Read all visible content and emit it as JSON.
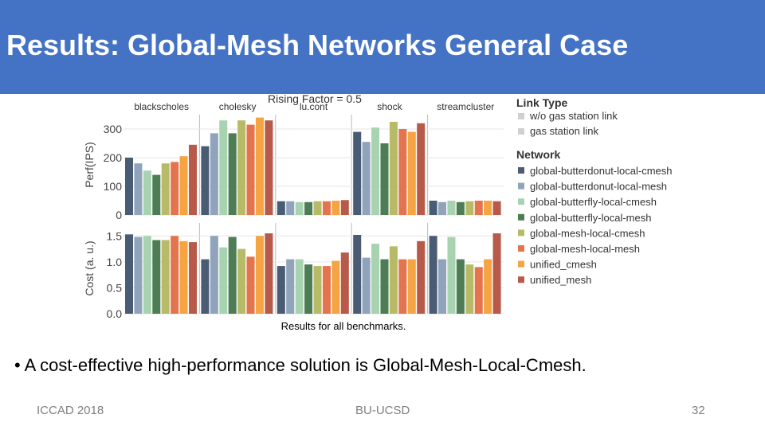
{
  "slide": {
    "title": "Results: Global-Mesh Networks General Case",
    "caption": "Results for all benchmarks.",
    "bullet": "• A cost-effective high-performance solution is Global-Mesh-Local-Cmesh.",
    "footer_left": "ICCAD 2018",
    "footer_center": "BU-UCSD",
    "page_number": "32"
  },
  "colors": {
    "title_bar": "#4472c4",
    "series": [
      "#4a5c74",
      "#8fa3ba",
      "#a8d3b0",
      "#4e7c55",
      "#b7bb68",
      "#e4744e",
      "#f4a443",
      "#b85a4a"
    ]
  },
  "chart_data": {
    "type": "bar",
    "title": "Rising Factor = 0.5",
    "categories": [
      "blackscholes",
      "cholesky",
      "lu.cont",
      "shock",
      "streamcluster"
    ],
    "legend": {
      "link_type_title": "Link Type",
      "link_types": [
        "w/o gas station link",
        "gas station link"
      ],
      "network_title": "Network"
    },
    "series": [
      {
        "name": "global-butterdonut-local-cmesh",
        "perf": [
          200,
          240,
          48,
          290,
          50
        ],
        "cost": [
          1.53,
          1.05,
          0.92,
          1.52,
          1.5
        ]
      },
      {
        "name": "global-butterdonut-local-mesh",
        "perf": [
          180,
          285,
          48,
          255,
          45
        ],
        "cost": [
          1.48,
          1.5,
          1.05,
          1.08,
          1.05
        ]
      },
      {
        "name": "global-butterfly-local-cmesh",
        "perf": [
          155,
          330,
          45,
          305,
          50
        ],
        "cost": [
          1.5,
          1.28,
          1.05,
          1.35,
          1.48
        ]
      },
      {
        "name": "global-butterfly-local-mesh",
        "perf": [
          140,
          285,
          45,
          250,
          45
        ],
        "cost": [
          1.42,
          1.48,
          0.95,
          1.05,
          1.05
        ]
      },
      {
        "name": "global-mesh-local-cmesh",
        "perf": [
          180,
          330,
          48,
          325,
          48
        ],
        "cost": [
          1.42,
          1.25,
          0.92,
          1.3,
          0.95
        ]
      },
      {
        "name": "global-mesh-local-mesh",
        "perf": [
          185,
          315,
          48,
          300,
          50
        ],
        "cost": [
          1.5,
          1.1,
          0.92,
          1.05,
          0.9
        ]
      },
      {
        "name": "unified_cmesh",
        "perf": [
          205,
          340,
          50,
          290,
          50
        ],
        "cost": [
          1.4,
          1.5,
          1.02,
          1.05,
          1.05
        ]
      },
      {
        "name": "unified_mesh",
        "perf": [
          245,
          330,
          52,
          320,
          48
        ],
        "cost": [
          1.38,
          1.55,
          1.18,
          1.4,
          1.55
        ]
      }
    ],
    "panels": [
      {
        "ylabel": "Perf(IPS)",
        "ylim": [
          0,
          350
        ],
        "ticks": [
          0,
          100,
          200,
          300
        ],
        "tick_labels": [
          "0",
          "100",
          "200",
          "300"
        ]
      },
      {
        "ylabel": "Cost (a. u.)",
        "ylim": [
          0,
          1.75
        ],
        "ticks": [
          0,
          0.5,
          1.0,
          1.5
        ],
        "tick_labels": [
          "0.0",
          "0.5",
          "1.0",
          "1.5"
        ]
      }
    ]
  }
}
